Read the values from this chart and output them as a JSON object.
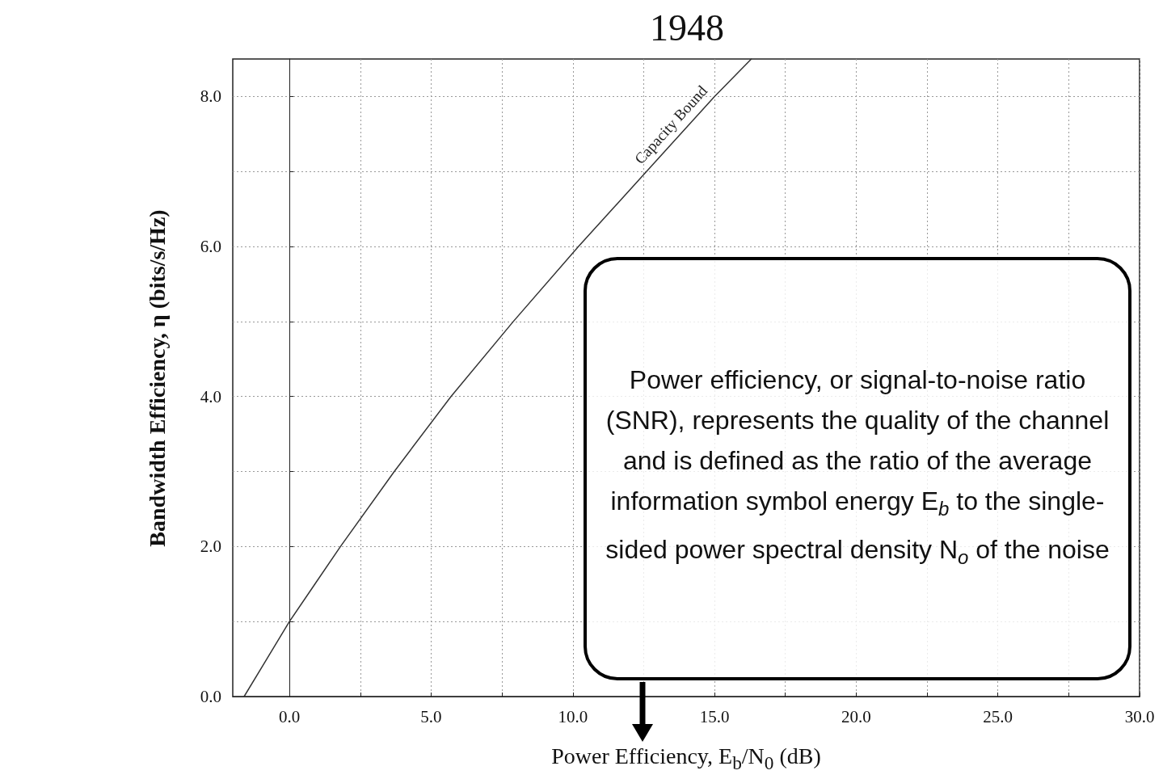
{
  "chart_data": {
    "type": "line",
    "title": "1948",
    "xlabel": "Power Efficiency, E$_{b}$/N$_{0}$ (dB)",
    "ylabel": "Bandwidth Efficiency, η (bits/s/Hz)",
    "x": [
      -1.6,
      -0.8,
      0.0,
      0.9,
      1.8,
      3.7,
      5.7,
      7.9,
      10.2,
      12.6,
      15.0,
      16.3
    ],
    "series": [
      {
        "color": "#333333",
        "values": [
          0,
          0.5,
          1,
          1.5,
          2,
          3,
          4,
          5,
          6,
          7,
          8,
          8.5
        ]
      }
    ],
    "xlim": [
      -2,
      30
    ],
    "xticks": [
      {
        "value": 0,
        "label": "0.0"
      },
      {
        "value": 2.5,
        "label": null
      },
      {
        "value": 5,
        "label": "5.0"
      },
      {
        "value": 7.5,
        "label": null
      },
      {
        "value": 10,
        "label": "10.0"
      },
      {
        "value": 12.5,
        "label": null
      },
      {
        "value": 15,
        "label": "15.0"
      },
      {
        "value": 17.5,
        "label": null
      },
      {
        "value": 20,
        "label": "20.0"
      },
      {
        "value": 22.5,
        "label": null
      },
      {
        "value": 25,
        "label": "25.0"
      },
      {
        "value": 27.5,
        "label": null
      },
      {
        "value": 30,
        "label": "30.0"
      }
    ],
    "ylim": [
      0,
      8.5
    ],
    "yticks": [
      {
        "value": 0,
        "label": "0.0"
      },
      {
        "value": 1,
        "label": null
      },
      {
        "value": 2,
        "label": "2.0"
      },
      {
        "value": 3,
        "label": null
      },
      {
        "value": 4,
        "label": "4.0"
      },
      {
        "value": 5,
        "label": null
      },
      {
        "value": 6,
        "label": "6.0"
      },
      {
        "value": 7,
        "label": null
      },
      {
        "value": 8,
        "label": "8.0"
      }
    ],
    "grid": true,
    "marker": "none",
    "line_style": "solid",
    "annotations": [
      "Power efficiency, or signal-to-noise ratio (SNR), represents the quality of the channel and is defined as the ratio of the average information symbol energy E$_{b}$ to the single-sided power spectral density N$_{o}$ of the noise",
      "Capacity Bound"
    ]
  }
}
